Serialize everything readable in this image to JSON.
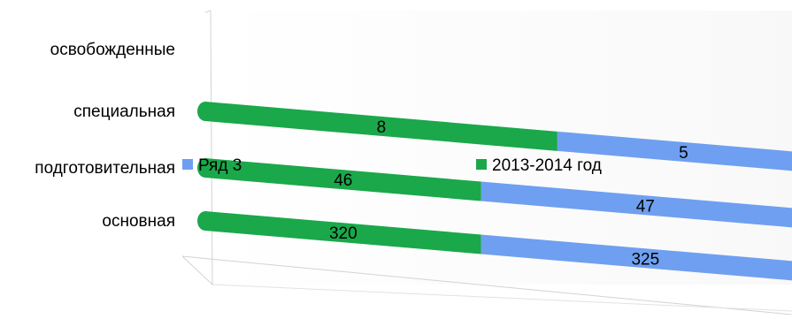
{
  "chart_data": {
    "type": "bar",
    "orientation": "horizontal",
    "stacked": true,
    "perspective": "3d",
    "categories": [
      "освобожденные",
      "специальная",
      "подготовительная",
      "основная"
    ],
    "series": [
      {
        "name": "2013-2014 год",
        "color": "#1aa84a",
        "values": [
          null,
          8,
          46,
          320
        ],
        "labels": [
          "",
          "8",
          "46",
          "320"
        ]
      },
      {
        "name": "Ряд 3",
        "color": "#6f9ff0",
        "values": [
          null,
          5,
          47,
          325
        ],
        "labels": [
          "",
          "5",
          "47",
          "325"
        ]
      }
    ],
    "legend": {
      "position": "inside-middle",
      "entries": [
        "Ряд 3",
        "2013-2014 год"
      ]
    },
    "grid": false
  }
}
